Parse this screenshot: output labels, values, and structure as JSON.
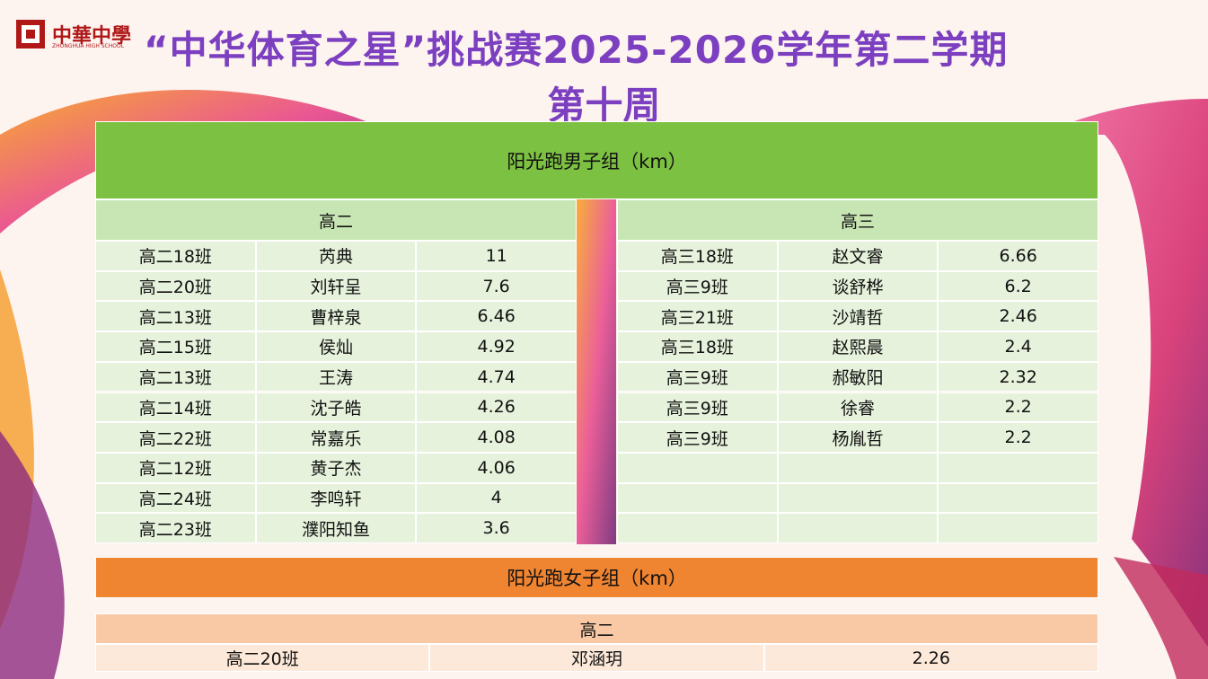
{
  "logo": {
    "name": "中華中學",
    "subtitle": "ZHONGHUA HIGH SCHOOL"
  },
  "title": {
    "line1": "“中华体育之星”挑战赛2025-2026学年第二学期",
    "line2": "第十周"
  },
  "boys": {
    "title": "阳光跑男子组（km）",
    "groups": [
      {
        "name": "高二",
        "rows": [
          [
            "高二18班",
            "芮典",
            "11"
          ],
          [
            "高二20班",
            "刘轩呈",
            "7.6"
          ],
          [
            "高二13班",
            "曹梓泉",
            "6.46"
          ],
          [
            "高二15班",
            "侯灿",
            "4.92"
          ],
          [
            "高二13班",
            "王涛",
            "4.74"
          ],
          [
            "高二14班",
            "沈子皓",
            "4.26"
          ],
          [
            "高二22班",
            "常嘉乐",
            "4.08"
          ],
          [
            "高二12班",
            "黄子杰",
            "4.06"
          ],
          [
            "高二24班",
            "李鸣轩",
            "4"
          ],
          [
            "高二23班",
            "濮阳知鱼",
            "3.6"
          ]
        ]
      },
      {
        "name": "高三",
        "rows": [
          [
            "高三18班",
            "赵文睿",
            "6.66"
          ],
          [
            "高三9班",
            "谈舒桦",
            "6.2"
          ],
          [
            "高三21班",
            "沙靖哲",
            "2.46"
          ],
          [
            "高三18班",
            "赵熙晨",
            "2.4"
          ],
          [
            "高三9班",
            "郝敏阳",
            "2.32"
          ],
          [
            "高三9班",
            "徐睿",
            "2.2"
          ],
          [
            "高三9班",
            "杨胤哲",
            "2.2"
          ]
        ]
      }
    ]
  },
  "girls": {
    "title": "阳光跑女子组（km）",
    "groups": [
      {
        "name": "高二",
        "rows": [
          [
            "高二20班",
            "邓涵玥",
            "2.26"
          ]
        ]
      }
    ]
  }
}
